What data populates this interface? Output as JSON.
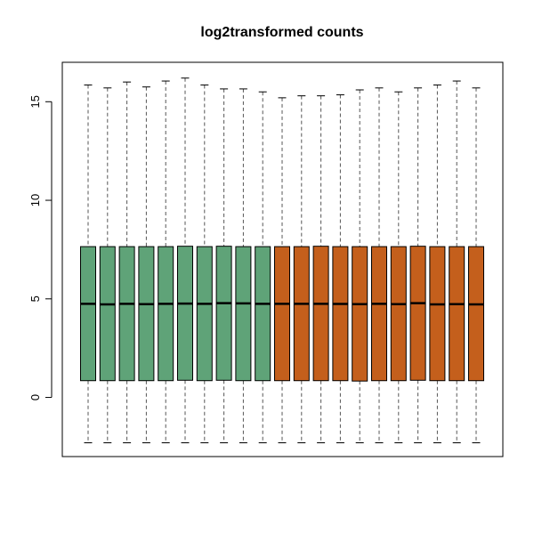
{
  "chart_data": {
    "type": "boxplot",
    "title": "log2transformed counts",
    "xlabel": "",
    "ylabel": "",
    "ylim": [
      -3.0,
      17.0
    ],
    "yticks": [
      0,
      5,
      10,
      15
    ],
    "grid": false,
    "legend": "none",
    "groups": [
      {
        "color": "#5fa378",
        "count": 10
      },
      {
        "color": "#c45f1c",
        "count": 11
      }
    ],
    "boxes": [
      {
        "min": -2.3,
        "q1": 0.85,
        "median": 4.75,
        "q3": 7.65,
        "max": 15.85
      },
      {
        "min": -2.3,
        "q1": 0.85,
        "median": 4.72,
        "q3": 7.65,
        "max": 15.7
      },
      {
        "min": -2.3,
        "q1": 0.85,
        "median": 4.75,
        "q3": 7.65,
        "max": 16.0
      },
      {
        "min": -2.3,
        "q1": 0.85,
        "median": 4.73,
        "q3": 7.65,
        "max": 15.75
      },
      {
        "min": -2.3,
        "q1": 0.85,
        "median": 4.75,
        "q3": 7.65,
        "max": 16.05
      },
      {
        "min": -2.3,
        "q1": 0.87,
        "median": 4.76,
        "q3": 7.67,
        "max": 16.2
      },
      {
        "min": -2.3,
        "q1": 0.85,
        "median": 4.75,
        "q3": 7.65,
        "max": 15.85
      },
      {
        "min": -2.3,
        "q1": 0.87,
        "median": 4.78,
        "q3": 7.67,
        "max": 15.65
      },
      {
        "min": -2.3,
        "q1": 0.85,
        "median": 4.77,
        "q3": 7.65,
        "max": 15.65
      },
      {
        "min": -2.3,
        "q1": 0.85,
        "median": 4.75,
        "q3": 7.65,
        "max": 15.5
      },
      {
        "min": -2.3,
        "q1": 0.85,
        "median": 4.75,
        "q3": 7.65,
        "max": 15.2
      },
      {
        "min": -2.3,
        "q1": 0.85,
        "median": 4.75,
        "q3": 7.65,
        "max": 15.3
      },
      {
        "min": -2.3,
        "q1": 0.85,
        "median": 4.75,
        "q3": 7.67,
        "max": 15.3
      },
      {
        "min": -2.3,
        "q1": 0.85,
        "median": 4.74,
        "q3": 7.65,
        "max": 15.35
      },
      {
        "min": -2.3,
        "q1": 0.83,
        "median": 4.73,
        "q3": 7.65,
        "max": 15.6
      },
      {
        "min": -2.3,
        "q1": 0.85,
        "median": 4.75,
        "q3": 7.65,
        "max": 15.7
      },
      {
        "min": -2.3,
        "q1": 0.85,
        "median": 4.73,
        "q3": 7.65,
        "max": 15.5
      },
      {
        "min": -2.3,
        "q1": 0.87,
        "median": 4.78,
        "q3": 7.67,
        "max": 15.7
      },
      {
        "min": -2.3,
        "q1": 0.85,
        "median": 4.72,
        "q3": 7.65,
        "max": 15.85
      },
      {
        "min": -2.3,
        "q1": 0.85,
        "median": 4.73,
        "q3": 7.65,
        "max": 16.05
      },
      {
        "min": -2.3,
        "q1": 0.85,
        "median": 4.72,
        "q3": 7.65,
        "max": 15.7
      }
    ]
  }
}
